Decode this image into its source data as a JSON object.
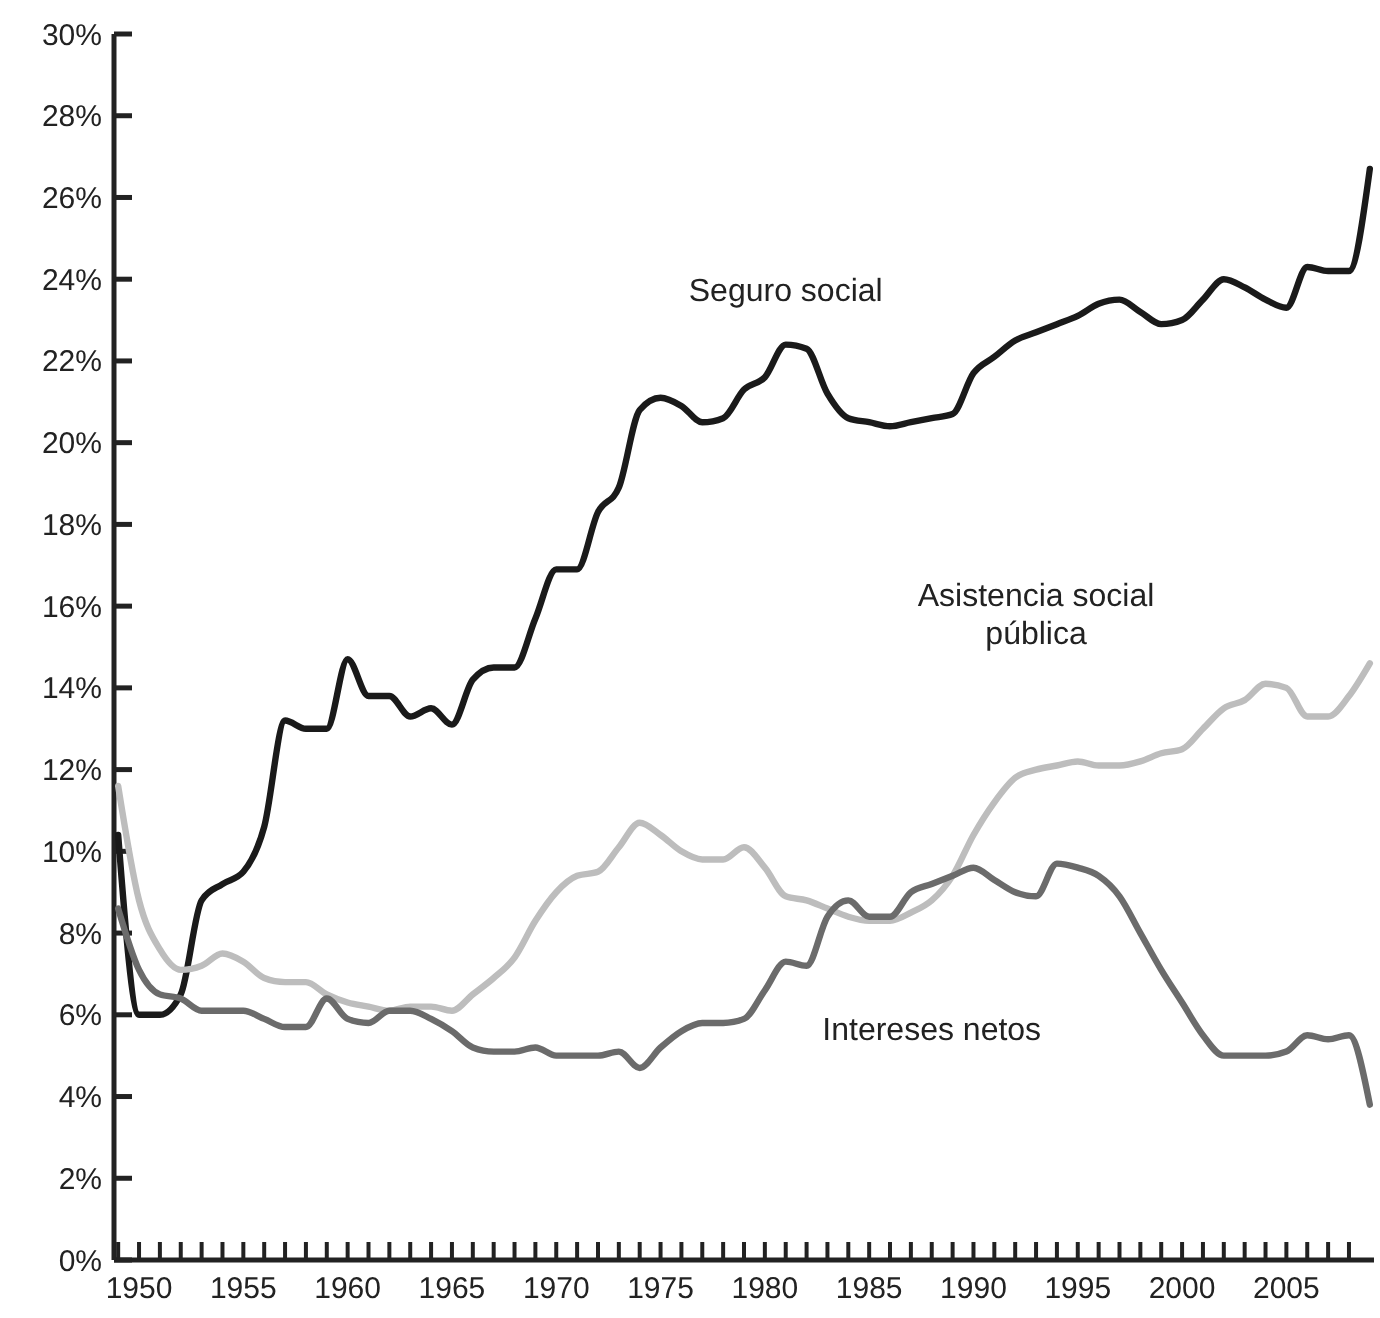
{
  "chart_data": {
    "type": "line",
    "marker": "none",
    "line_style": "solid",
    "grid": false,
    "legend": false,
    "x": [
      1949,
      1950,
      1951,
      1952,
      1953,
      1954,
      1955,
      1956,
      1957,
      1958,
      1959,
      1960,
      1961,
      1962,
      1963,
      1964,
      1965,
      1966,
      1967,
      1968,
      1969,
      1970,
      1971,
      1972,
      1973,
      1974,
      1975,
      1976,
      1977,
      1978,
      1979,
      1980,
      1981,
      1982,
      1983,
      1984,
      1985,
      1986,
      1987,
      1988,
      1989,
      1990,
      1991,
      1992,
      1993,
      1994,
      1995,
      1996,
      1997,
      1998,
      1999,
      2000,
      2001,
      2002,
      2003,
      2004,
      2005,
      2006,
      2007,
      2008,
      2009
    ],
    "series": [
      {
        "name": "Seguro social",
        "color": "#1a1a1a",
        "values": [
          10.4,
          6.0,
          6.0,
          6.5,
          8.8,
          9.2,
          9.5,
          10.6,
          13.2,
          13.0,
          13.0,
          14.7,
          13.8,
          13.8,
          13.3,
          13.5,
          13.1,
          14.2,
          14.5,
          14.5,
          15.7,
          16.9,
          16.9,
          18.3,
          18.9,
          20.8,
          21.1,
          20.9,
          20.5,
          20.6,
          21.3,
          21.6,
          22.4,
          22.3,
          21.2,
          20.6,
          20.5,
          20.4,
          20.5,
          20.6,
          20.7,
          21.7,
          22.1,
          22.5,
          22.7,
          22.9,
          23.1,
          23.4,
          23.5,
          23.2,
          22.9,
          23.0,
          23.5,
          24.0,
          23.8,
          23.5,
          23.3,
          24.3,
          24.2,
          24.2,
          26.7
        ]
      },
      {
        "name": "Asistencia social pública",
        "color": "#bdbdbd",
        "values": [
          11.6,
          8.8,
          7.6,
          7.1,
          7.2,
          7.5,
          7.3,
          6.9,
          6.8,
          6.8,
          6.5,
          6.3,
          6.2,
          6.1,
          6.2,
          6.2,
          6.1,
          6.5,
          6.9,
          7.4,
          8.3,
          9.0,
          9.4,
          9.5,
          10.1,
          10.7,
          10.4,
          10.0,
          9.8,
          9.8,
          10.1,
          9.6,
          8.9,
          8.8,
          8.6,
          8.4,
          8.3,
          8.3,
          8.5,
          8.8,
          9.4,
          10.4,
          11.2,
          11.8,
          12.0,
          12.1,
          12.2,
          12.1,
          12.1,
          12.2,
          12.4,
          12.5,
          13.0,
          13.5,
          13.7,
          14.1,
          14.0,
          13.3,
          13.3,
          13.8,
          14.6
        ]
      },
      {
        "name": "Intereses netos",
        "color": "#6b6b6b",
        "values": [
          8.6,
          7.1,
          6.5,
          6.4,
          6.1,
          6.1,
          6.1,
          5.9,
          5.7,
          5.7,
          6.4,
          5.9,
          5.8,
          6.1,
          6.1,
          5.9,
          5.6,
          5.2,
          5.1,
          5.1,
          5.2,
          5.0,
          5.0,
          5.0,
          5.1,
          4.7,
          5.2,
          5.6,
          5.8,
          5.8,
          5.9,
          6.6,
          7.3,
          7.2,
          8.4,
          8.8,
          8.4,
          8.4,
          9.0,
          9.2,
          9.4,
          9.6,
          9.3,
          9.0,
          8.9,
          9.7,
          9.6,
          9.4,
          8.9,
          8.0,
          7.1,
          6.3,
          5.5,
          5.0,
          5.0,
          5.0,
          5.1,
          5.5,
          5.4,
          5.5,
          3.8
        ]
      }
    ],
    "xlim": [
      1948.8,
      2009.2
    ],
    "xticks": [
      {
        "value": 1949,
        "label": null
      },
      1950,
      {
        "value": 1951,
        "label": null
      },
      {
        "value": 1952,
        "label": null
      },
      {
        "value": 1953,
        "label": null
      },
      {
        "value": 1954,
        "label": null
      },
      1955,
      {
        "value": 1956,
        "label": null
      },
      {
        "value": 1957,
        "label": null
      },
      {
        "value": 1958,
        "label": null
      },
      {
        "value": 1959,
        "label": null
      },
      1960,
      {
        "value": 1961,
        "label": null
      },
      {
        "value": 1962,
        "label": null
      },
      {
        "value": 1963,
        "label": null
      },
      {
        "value": 1964,
        "label": null
      },
      1965,
      {
        "value": 1966,
        "label": null
      },
      {
        "value": 1967,
        "label": null
      },
      {
        "value": 1968,
        "label": null
      },
      {
        "value": 1969,
        "label": null
      },
      1970,
      {
        "value": 1971,
        "label": null
      },
      {
        "value": 1972,
        "label": null
      },
      {
        "value": 1973,
        "label": null
      },
      {
        "value": 1974,
        "label": null
      },
      1975,
      {
        "value": 1976,
        "label": null
      },
      {
        "value": 1977,
        "label": null
      },
      {
        "value": 1978,
        "label": null
      },
      {
        "value": 1979,
        "label": null
      },
      1980,
      {
        "value": 1981,
        "label": null
      },
      {
        "value": 1982,
        "label": null
      },
      {
        "value": 1983,
        "label": null
      },
      {
        "value": 1984,
        "label": null
      },
      1985,
      {
        "value": 1986,
        "label": null
      },
      {
        "value": 1987,
        "label": null
      },
      {
        "value": 1988,
        "label": null
      },
      {
        "value": 1989,
        "label": null
      },
      1990,
      {
        "value": 1991,
        "label": null
      },
      {
        "value": 1992,
        "label": null
      },
      {
        "value": 1993,
        "label": null
      },
      {
        "value": 1994,
        "label": null
      },
      1995,
      {
        "value": 1996,
        "label": null
      },
      {
        "value": 1997,
        "label": null
      },
      {
        "value": 1998,
        "label": null
      },
      {
        "value": 1999,
        "label": null
      },
      2000,
      {
        "value": 2001,
        "label": null
      },
      {
        "value": 2002,
        "label": null
      },
      {
        "value": 2003,
        "label": null
      },
      {
        "value": 2004,
        "label": null
      },
      2005,
      {
        "value": 2006,
        "label": null
      },
      {
        "value": 2007,
        "label": null
      },
      {
        "value": 2008,
        "label": null
      }
    ],
    "ylim": [
      0,
      30
    ],
    "yticks": [
      {
        "value": 0,
        "label": "0%"
      },
      {
        "value": 2,
        "label": "2%"
      },
      {
        "value": 4,
        "label": "4%"
      },
      {
        "value": 6,
        "label": "6%"
      },
      {
        "value": 8,
        "label": "8%"
      },
      {
        "value": 10,
        "label": "10%"
      },
      {
        "value": 12,
        "label": "12%"
      },
      {
        "value": 14,
        "label": "14%"
      },
      {
        "value": 16,
        "label": "16%"
      },
      {
        "value": 18,
        "label": "18%"
      },
      {
        "value": 20,
        "label": "20%"
      },
      {
        "value": 22,
        "label": "22%"
      },
      {
        "value": 24,
        "label": "24%"
      },
      {
        "value": 26,
        "label": "26%"
      },
      {
        "value": 28,
        "label": "28%"
      },
      {
        "value": 30,
        "label": "30%"
      }
    ]
  }
}
